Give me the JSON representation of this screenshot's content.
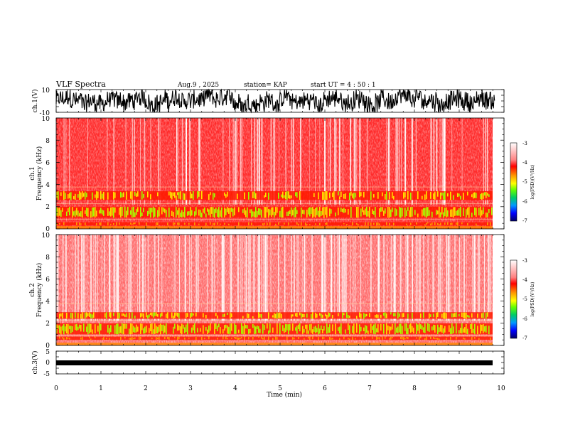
{
  "header": {
    "title": "VLF Spectra",
    "date": "Aug.9  , 2025",
    "station": "station= KAP",
    "start_ut": "start  UT  =   4 : 50 : 1"
  },
  "chart_data": [
    {
      "type": "line",
      "name": "ch1-waveform",
      "ylabel": "ch.1(V)",
      "ylim": [
        -10,
        10
      ],
      "yticks": [
        "10",
        "-10"
      ],
      "description_series": [
        {
          "name": "ch.1",
          "amplitude_range": [
            -10,
            10
          ]
        }
      ],
      "xlim": [
        0,
        10
      ],
      "data_end_min": 9.8
    },
    {
      "type": "heatmap",
      "name": "ch1-spectrogram",
      "ylabel": "ch.1\nFrequency  (kHz)",
      "ylabel_lines": [
        "ch.1",
        "Frequency  (kHz)"
      ],
      "ylim": [
        0,
        10
      ],
      "yticks": [
        "0",
        "2",
        "4",
        "6",
        "8",
        "10"
      ],
      "xlim": [
        0,
        10
      ],
      "data_end_min": 9.8,
      "bands_khz": [
        {
          "range": [
            0.3,
            0.6
          ],
          "level": "-3.5"
        },
        {
          "range": [
            1.0,
            2.0
          ],
          "level": "-4.8"
        },
        {
          "range": [
            2.6,
            3.4
          ],
          "level": "-4.4"
        }
      ],
      "colorbar": {
        "label": "log(PSD)(V²/Hz)",
        "ticks": [
          "-3",
          "-4",
          "-5",
          "-6",
          "-7"
        ],
        "range": [
          -7,
          -3
        ]
      }
    },
    {
      "type": "heatmap",
      "name": "ch2-spectrogram",
      "ylabel": "ch.2\nFrequency  (kHz)",
      "ylabel_lines": [
        "ch.2",
        "Frequency  (kHz)"
      ],
      "ylim": [
        0,
        10
      ],
      "yticks": [
        "0",
        "2",
        "4",
        "6",
        "8",
        "10"
      ],
      "xlim": [
        0,
        10
      ],
      "data_end_min": 9.8,
      "bands_khz": [
        {
          "range": [
            0.5,
            0.8
          ],
          "level": "-3.5"
        },
        {
          "range": [
            1.0,
            2.0
          ],
          "level": "-4.6"
        },
        {
          "range": [
            2.4,
            3.0
          ],
          "level": "-4.2"
        }
      ],
      "colorbar": {
        "label": "log(PSD)(V²/Hz)",
        "ticks": [
          "-3",
          "-4",
          "-5",
          "-6",
          "-7"
        ],
        "range": [
          -7,
          -3
        ]
      }
    },
    {
      "type": "line",
      "name": "ch3-waveform",
      "ylabel": "ch.3(V)",
      "ylim": [
        -5,
        5
      ],
      "yticks": [
        "5",
        "0",
        "-5"
      ],
      "series": [
        {
          "name": "ch.3",
          "center": 0,
          "band": [
            -0.6,
            0.6
          ]
        }
      ],
      "xlim": [
        0,
        10
      ],
      "data_end_min": 9.8
    }
  ],
  "xaxis": {
    "label": "Time  (min)",
    "ticks": [
      "0",
      "1",
      "2",
      "3",
      "4",
      "5",
      "6",
      "7",
      "8",
      "9",
      "10"
    ],
    "range": [
      0,
      10
    ]
  }
}
